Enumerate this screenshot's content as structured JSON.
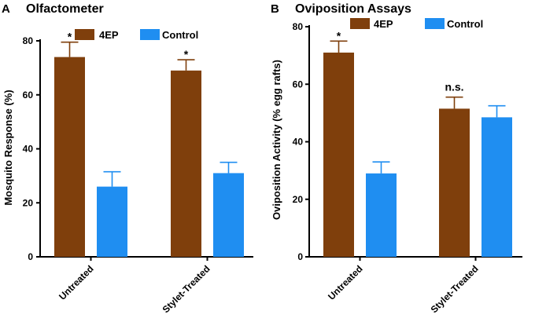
{
  "chart_data": [
    {
      "type": "bar",
      "panel_label": "A",
      "title": "Olfactometer",
      "xlabel": "",
      "ylabel": "Mosquito Response (%)",
      "ylim": [
        0,
        80
      ],
      "yticks": [
        0,
        20,
        40,
        60,
        80
      ],
      "categories": [
        "Untreated",
        "Stylet-Treated"
      ],
      "series": [
        {
          "name": "4EP",
          "color": "#7f3f0c",
          "values": [
            74,
            69
          ],
          "errors": [
            5.5,
            4
          ]
        },
        {
          "name": "Control",
          "color": "#1f8ef1",
          "values": [
            26,
            31
          ],
          "errors": [
            5.5,
            4
          ]
        }
      ],
      "annotations": [
        {
          "category": 0,
          "series": 0,
          "text": "*"
        },
        {
          "category": 1,
          "series": 0,
          "text": "*"
        }
      ],
      "legend": "top"
    },
    {
      "type": "bar",
      "panel_label": "B",
      "title": "Oviposition Assays",
      "xlabel": "",
      "ylabel": "Oviposition Activity (% egg rafts)",
      "ylim": [
        0,
        80
      ],
      "yticks": [
        0,
        20,
        40,
        60,
        80
      ],
      "categories": [
        "Untreated",
        "Stylet-Treated"
      ],
      "series": [
        {
          "name": "4EP",
          "color": "#7f3f0c",
          "values": [
            71,
            51.5
          ],
          "errors": [
            4,
            4
          ]
        },
        {
          "name": "Control",
          "color": "#1f8ef1",
          "values": [
            29,
            48.5
          ],
          "errors": [
            4,
            4
          ]
        }
      ],
      "annotations": [
        {
          "category": 0,
          "series": 0,
          "text": "*"
        },
        {
          "category": 1,
          "series": 0,
          "text": "n.s."
        }
      ],
      "legend": "top"
    }
  ]
}
